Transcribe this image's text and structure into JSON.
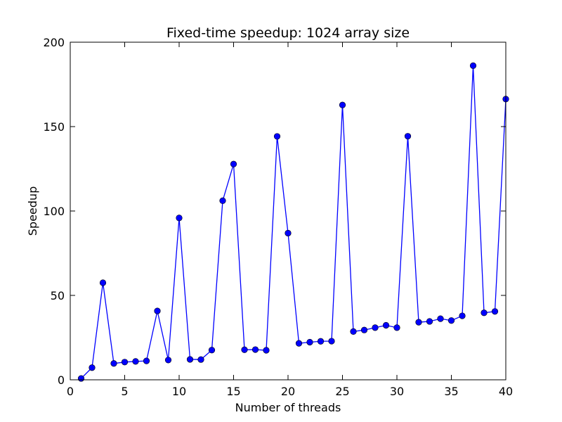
{
  "chart_data": {
    "type": "line",
    "title": "Fixed-time speedup: 1024 array size",
    "xlabel": "Number of threads",
    "ylabel": "Speedup",
    "xlim": [
      0,
      40
    ],
    "ylim": [
      0,
      200
    ],
    "xticks": [
      0,
      5,
      10,
      15,
      20,
      25,
      30,
      35,
      40
    ],
    "yticks": [
      0,
      50,
      100,
      150,
      200
    ],
    "grid": false,
    "legend": "none",
    "series": [
      {
        "color": "#0000ff",
        "marker": "circle",
        "x": [
          1,
          2,
          3,
          4,
          5,
          6,
          7,
          8,
          9,
          10,
          11,
          12,
          13,
          14,
          15,
          16,
          17,
          18,
          19,
          20,
          21,
          22,
          23,
          24,
          25,
          26,
          27,
          28,
          29,
          30,
          31,
          32,
          33,
          34,
          35,
          36,
          37,
          38,
          39,
          40
        ],
        "y": [
          0.8,
          7.2,
          57.5,
          9.7,
          10.5,
          10.9,
          11.2,
          40.8,
          11.7,
          95.9,
          12.1,
          12.0,
          17.6,
          106.1,
          127.8,
          17.8,
          17.9,
          17.5,
          144.2,
          86.9,
          21.6,
          22.3,
          22.8,
          22.9,
          162.8,
          28.6,
          29.5,
          30.9,
          32.3,
          30.9,
          144.3,
          34.1,
          34.6,
          36.2,
          35.1,
          37.9,
          186.1,
          39.7,
          40.5,
          166.3
        ]
      }
    ]
  }
}
